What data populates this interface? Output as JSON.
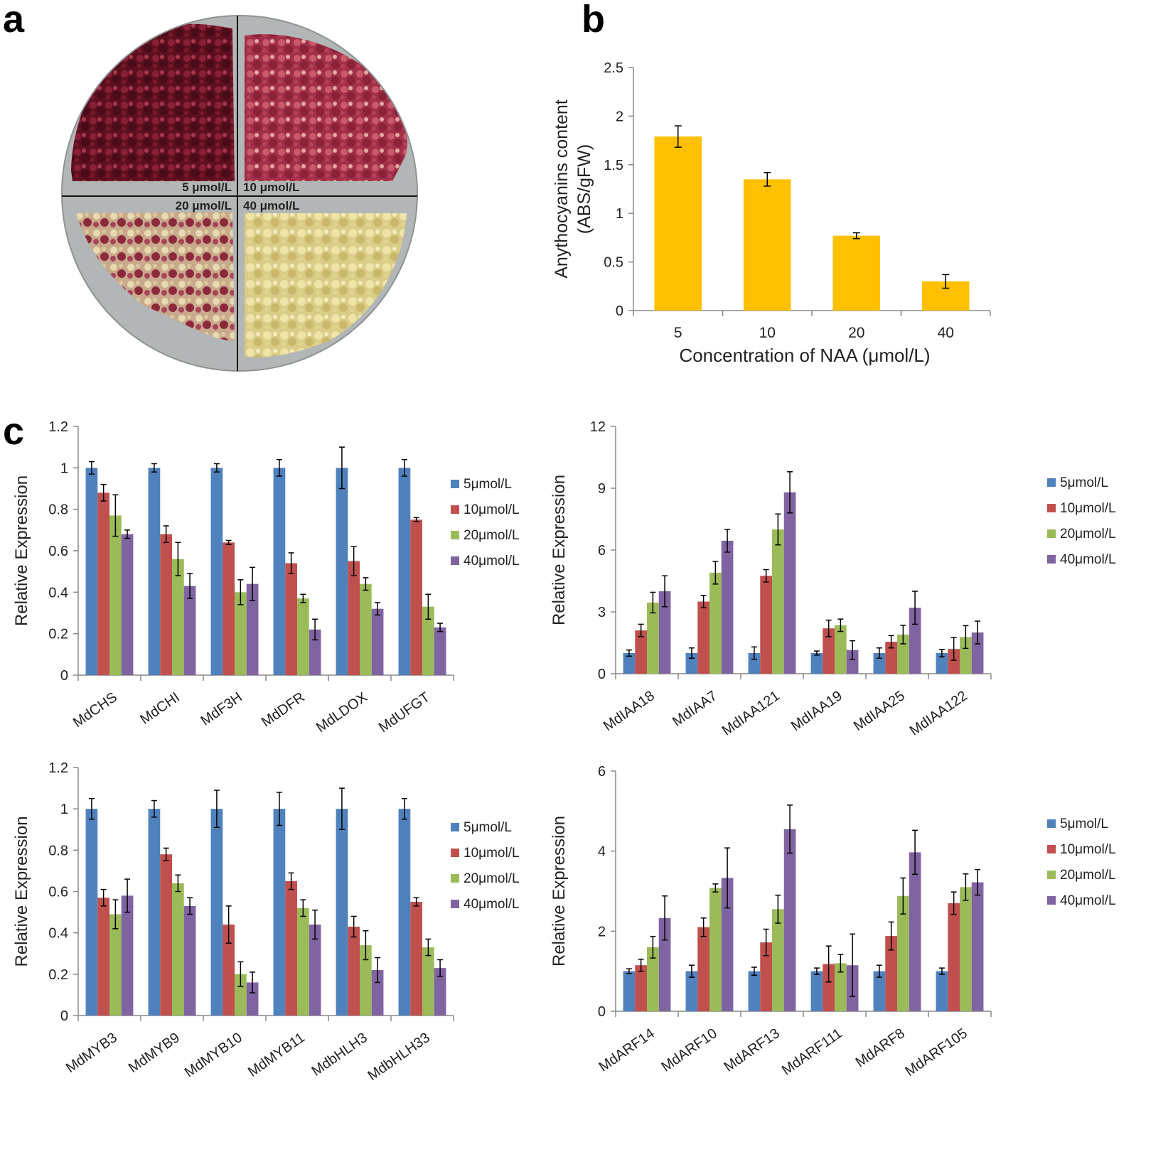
{
  "panels": {
    "a": "a",
    "b": "b",
    "c": "c"
  },
  "photo": {
    "labels": [
      "5 μmol/L",
      "10 μmol/L",
      "20 μmol/L",
      "40 μmol/L"
    ]
  },
  "chart_data": [
    {
      "id": "b",
      "type": "bar",
      "categories": [
        "5",
        "10",
        "20",
        "40"
      ],
      "values": [
        1.79,
        1.35,
        0.77,
        0.3
      ],
      "errors": [
        0.11,
        0.07,
        0.03,
        0.07
      ],
      "xlabel": "Concentration of NAA (μmol/L)",
      "ylabel": "Anythocyanins content",
      "ylabel2": "(ABS/gFW)",
      "ylim": [
        0,
        2.5
      ],
      "yticks": [
        "0",
        "0.5",
        "1",
        "1.5",
        "2",
        "2.5"
      ],
      "grid": false,
      "color": "#FFC000"
    },
    {
      "id": "c1",
      "type": "bar",
      "categories": [
        "MdCHS",
        "MdCHI",
        "MdF3H",
        "MdDFR",
        "MdLDOX",
        "MdUFGT"
      ],
      "series": [
        {
          "name": "5μmol/L",
          "color": "#4F81BD",
          "values": [
            1,
            1,
            1,
            1,
            1,
            1
          ],
          "errors": [
            0.03,
            0.02,
            0.02,
            0.04,
            0.1,
            0.04
          ]
        },
        {
          "name": "10μmol/L",
          "color": "#C0504D",
          "values": [
            0.88,
            0.68,
            0.64,
            0.54,
            0.55,
            0.75
          ],
          "errors": [
            0.04,
            0.04,
            0.01,
            0.05,
            0.07,
            0.01
          ]
        },
        {
          "name": "20μmol/L",
          "color": "#9BBB59",
          "values": [
            0.77,
            0.56,
            0.4,
            0.37,
            0.44,
            0.33
          ],
          "errors": [
            0.1,
            0.08,
            0.06,
            0.02,
            0.03,
            0.06
          ]
        },
        {
          "name": "40μmol/L",
          "color": "#8064A2",
          "values": [
            0.68,
            0.43,
            0.44,
            0.22,
            0.32,
            0.23
          ],
          "errors": [
            0.02,
            0.06,
            0.08,
            0.05,
            0.03,
            0.02
          ]
        }
      ],
      "ylabel": "Relative Expression",
      "ylim": [
        0,
        1.2
      ],
      "yticks": [
        "0",
        "0.2",
        "0.4",
        "0.6",
        "0.8",
        "1",
        "1.2"
      ],
      "legend": "right",
      "grid": false
    },
    {
      "id": "c2",
      "type": "bar",
      "categories": [
        "MdIAA18",
        "MdIAA7",
        "MdIAA121",
        "MdIAA19",
        "MdIAA25",
        "MdIAA122"
      ],
      "series": [
        {
          "name": "5μmol/L",
          "color": "#4F81BD",
          "values": [
            1,
            1,
            1,
            1,
            1,
            1
          ],
          "errors": [
            0.15,
            0.25,
            0.3,
            0.1,
            0.25,
            0.18
          ]
        },
        {
          "name": "10μmol/L",
          "color": "#C0504D",
          "values": [
            2.1,
            3.5,
            4.75,
            2.2,
            1.55,
            1.2
          ],
          "errors": [
            0.3,
            0.3,
            0.3,
            0.4,
            0.3,
            0.55
          ]
        },
        {
          "name": "20μmol/L",
          "color": "#9BBB59",
          "values": [
            3.45,
            4.9,
            7.0,
            2.35,
            1.9,
            1.78
          ],
          "errors": [
            0.5,
            0.55,
            0.75,
            0.3,
            0.45,
            0.55
          ]
        },
        {
          "name": "40μmol/L",
          "color": "#8064A2",
          "values": [
            4.0,
            6.45,
            8.8,
            1.15,
            3.2,
            2.0
          ],
          "errors": [
            0.75,
            0.55,
            1.0,
            0.45,
            0.8,
            0.55
          ]
        }
      ],
      "ylabel": "Relative Expression",
      "ylim": [
        0,
        12
      ],
      "yticks": [
        "0",
        "3",
        "6",
        "9",
        "12"
      ],
      "legend": "right",
      "grid": false
    },
    {
      "id": "c3",
      "type": "bar",
      "categories": [
        "MdMYB3",
        "MdMYB9",
        "MdMYB10",
        "MdMYB11",
        "MdbHLH3",
        "MdbHLH33"
      ],
      "series": [
        {
          "name": "5μmol/L",
          "color": "#4F81BD",
          "values": [
            1,
            1,
            1,
            1,
            1,
            1
          ],
          "errors": [
            0.05,
            0.04,
            0.09,
            0.08,
            0.1,
            0.05
          ]
        },
        {
          "name": "10μmol/L",
          "color": "#C0504D",
          "values": [
            0.57,
            0.78,
            0.44,
            0.65,
            0.43,
            0.55
          ],
          "errors": [
            0.04,
            0.03,
            0.09,
            0.04,
            0.05,
            0.02
          ]
        },
        {
          "name": "20μmol/L",
          "color": "#9BBB59",
          "values": [
            0.49,
            0.64,
            0.2,
            0.52,
            0.34,
            0.33
          ],
          "errors": [
            0.07,
            0.04,
            0.06,
            0.04,
            0.07,
            0.04
          ]
        },
        {
          "name": "40μmol/L",
          "color": "#8064A2",
          "values": [
            0.58,
            0.53,
            0.16,
            0.44,
            0.22,
            0.23
          ],
          "errors": [
            0.08,
            0.04,
            0.05,
            0.07,
            0.06,
            0.04
          ]
        }
      ],
      "ylabel": "Relative Expression",
      "ylim": [
        0,
        1.2
      ],
      "yticks": [
        "0",
        "0.2",
        "0.4",
        "0.6",
        "0.8",
        "1",
        "1.2"
      ],
      "legend": "right",
      "grid": false
    },
    {
      "id": "c4",
      "type": "bar",
      "categories": [
        "MdARF14",
        "MdARF10",
        "MdARF13",
        "MdARF111",
        "MdARF8",
        "MdARF105"
      ],
      "series": [
        {
          "name": "5μmol/L",
          "color": "#4F81BD",
          "values": [
            1,
            1,
            1,
            1,
            1,
            1
          ],
          "errors": [
            0.06,
            0.15,
            0.1,
            0.08,
            0.15,
            0.08
          ]
        },
        {
          "name": "10μmol/L",
          "color": "#C0504D",
          "values": [
            1.15,
            2.1,
            1.72,
            1.18,
            1.88,
            2.7
          ],
          "errors": [
            0.15,
            0.23,
            0.33,
            0.45,
            0.35,
            0.28
          ]
        },
        {
          "name": "20μmol/L",
          "color": "#9BBB59",
          "values": [
            1.6,
            3.08,
            2.55,
            1.2,
            2.88,
            3.1
          ],
          "errors": [
            0.27,
            0.1,
            0.35,
            0.22,
            0.45,
            0.33
          ]
        },
        {
          "name": "40μmol/L",
          "color": "#8064A2",
          "values": [
            2.33,
            3.33,
            4.55,
            1.15,
            3.97,
            3.22
          ],
          "errors": [
            0.55,
            0.75,
            0.6,
            0.78,
            0.55,
            0.32
          ]
        }
      ],
      "ylabel": "Relative Expression",
      "ylim": [
        0,
        6
      ],
      "yticks": [
        "0",
        "2",
        "4",
        "6"
      ],
      "legend": "right",
      "grid": false
    }
  ]
}
